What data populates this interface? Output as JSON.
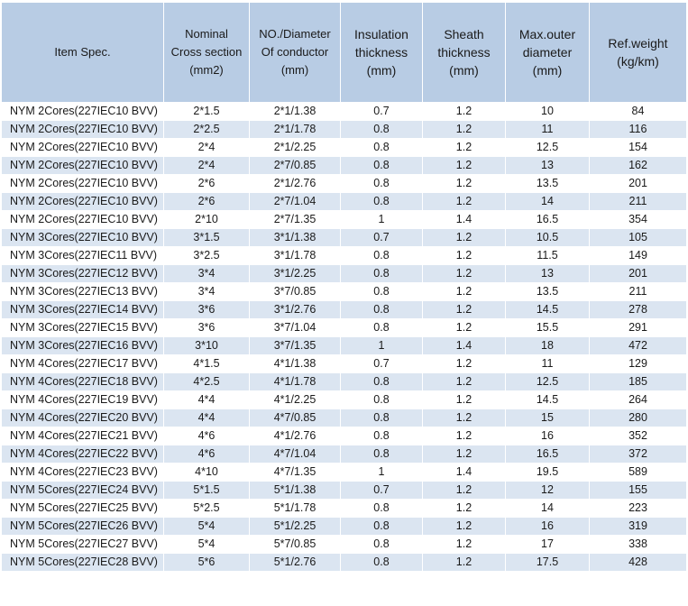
{
  "table": {
    "headers": [
      [
        "Item Spec."
      ],
      [
        "Nominal",
        "Cross section",
        "(mm2)"
      ],
      [
        "NO./Diameter",
        "Of conductor",
        "(mm)"
      ],
      [
        "Insulation",
        "thickness",
        "(mm)"
      ],
      [
        "Sheath",
        "thickness",
        "(mm)"
      ],
      [
        "Max.outer",
        "diameter",
        "(mm)"
      ],
      [
        "Ref.weight",
        "(kg/km)"
      ]
    ],
    "rows": [
      [
        "NYM 2Cores(227IEC10 BVV)",
        "2*1.5",
        "2*1/1.38",
        "0.7",
        "1.2",
        "10",
        "84"
      ],
      [
        "NYM 2Cores(227IEC10 BVV)",
        "2*2.5",
        "2*1/1.78",
        "0.8",
        "1.2",
        "11",
        "116"
      ],
      [
        "NYM 2Cores(227IEC10 BVV)",
        "2*4",
        "2*1/2.25",
        "0.8",
        "1.2",
        "12.5",
        "154"
      ],
      [
        "NYM 2Cores(227IEC10 BVV)",
        "2*4",
        "2*7/0.85",
        "0.8",
        "1.2",
        "13",
        "162"
      ],
      [
        "NYM 2Cores(227IEC10 BVV)",
        "2*6",
        "2*1/2.76",
        "0.8",
        "1.2",
        "13.5",
        "201"
      ],
      [
        "NYM 2Cores(227IEC10 BVV)",
        "2*6",
        "2*7/1.04",
        "0.8",
        "1.2",
        "14",
        "211"
      ],
      [
        "NYM 2Cores(227IEC10 BVV)",
        "2*10",
        "2*7/1.35",
        "1",
        "1.4",
        "16.5",
        "354"
      ],
      [
        "NYM 3Cores(227IEC10 BVV)",
        "3*1.5",
        "3*1/1.38",
        "0.7",
        "1.2",
        "10.5",
        "105"
      ],
      [
        "NYM 3Cores(227IEC11 BVV)",
        "3*2.5",
        "3*1/1.78",
        "0.8",
        "1.2",
        "11.5",
        "149"
      ],
      [
        "NYM 3Cores(227IEC12 BVV)",
        "3*4",
        "3*1/2.25",
        "0.8",
        "1.2",
        "13",
        "201"
      ],
      [
        "NYM 3Cores(227IEC13 BVV)",
        "3*4",
        "3*7/0.85",
        "0.8",
        "1.2",
        "13.5",
        "211"
      ],
      [
        "NYM 3Cores(227IEC14 BVV)",
        "3*6",
        "3*1/2.76",
        "0.8",
        "1.2",
        "14.5",
        "278"
      ],
      [
        "NYM 3Cores(227IEC15 BVV)",
        "3*6",
        "3*7/1.04",
        "0.8",
        "1.2",
        "15.5",
        "291"
      ],
      [
        "NYM 3Cores(227IEC16 BVV)",
        "3*10",
        "3*7/1.35",
        "1",
        "1.4",
        "18",
        "472"
      ],
      [
        "NYM 4Cores(227IEC17 BVV)",
        "4*1.5",
        "4*1/1.38",
        "0.7",
        "1.2",
        "11",
        "129"
      ],
      [
        "NYM 4Cores(227IEC18 BVV)",
        "4*2.5",
        "4*1/1.78",
        "0.8",
        "1.2",
        "12.5",
        "185"
      ],
      [
        "NYM 4Cores(227IEC19 BVV)",
        "4*4",
        "4*1/2.25",
        "0.8",
        "1.2",
        "14.5",
        "264"
      ],
      [
        "NYM 4Cores(227IEC20 BVV)",
        "4*4",
        "4*7/0.85",
        "0.8",
        "1.2",
        "15",
        "280"
      ],
      [
        "NYM 4Cores(227IEC21 BVV)",
        "4*6",
        "4*1/2.76",
        "0.8",
        "1.2",
        "16",
        "352"
      ],
      [
        "NYM 4Cores(227IEC22 BVV)",
        "4*6",
        "4*7/1.04",
        "0.8",
        "1.2",
        "16.5",
        "372"
      ],
      [
        "NYM 4Cores(227IEC23 BVV)",
        "4*10",
        "4*7/1.35",
        "1",
        "1.4",
        "19.5",
        "589"
      ],
      [
        "NYM 5Cores(227IEC24 BVV)",
        "5*1.5",
        "5*1/1.38",
        "0.7",
        "1.2",
        "12",
        "155"
      ],
      [
        "NYM 5Cores(227IEC25 BVV)",
        "5*2.5",
        "5*1/1.78",
        "0.8",
        "1.2",
        "14",
        "223"
      ],
      [
        "NYM 5Cores(227IEC26 BVV)",
        "5*4",
        "5*1/2.25",
        "0.8",
        "1.2",
        "16",
        "319"
      ],
      [
        "NYM 5Cores(227IEC27 BVV)",
        "5*4",
        "5*7/0.85",
        "0.8",
        "1.2",
        "17",
        "338"
      ],
      [
        "NYM 5Cores(227IEC28 BVV)",
        "5*6",
        "5*1/2.76",
        "0.8",
        "1.2",
        "17.5",
        "428"
      ]
    ]
  }
}
